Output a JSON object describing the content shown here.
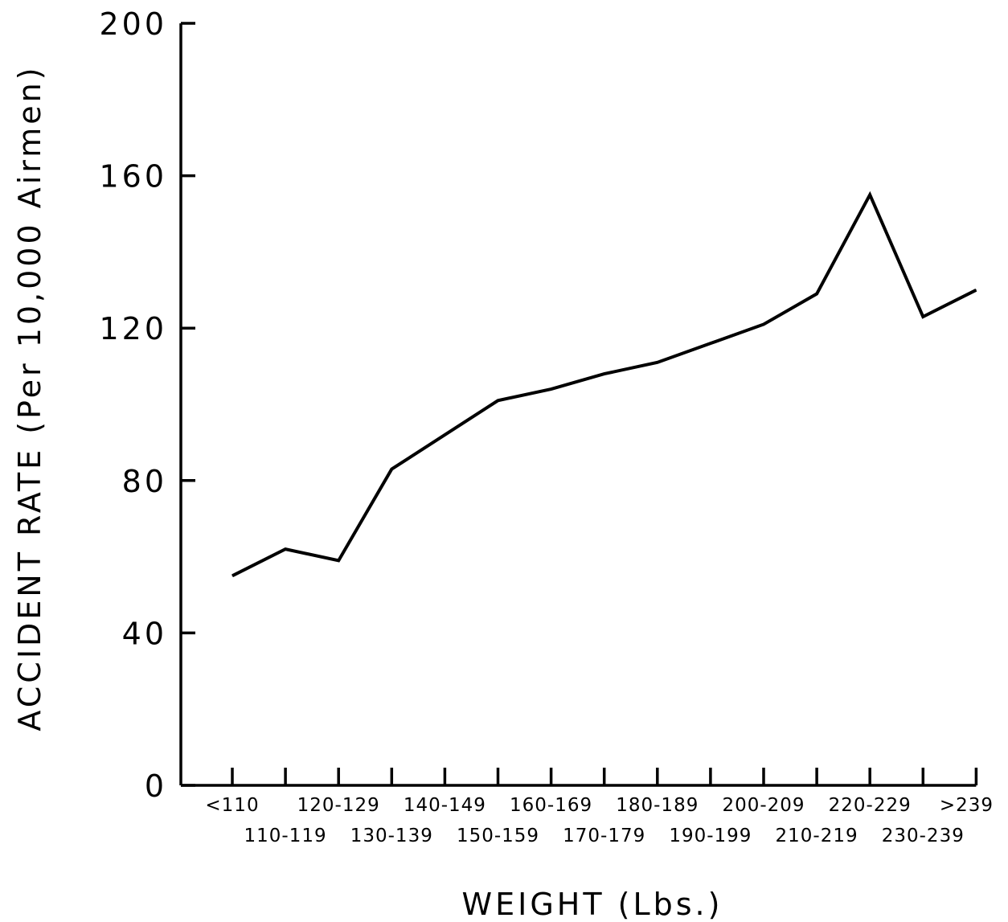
{
  "chart_data": {
    "type": "line",
    "title": "",
    "xlabel": "WEIGHT (Lbs.)",
    "ylabel": "ACCIDENT RATE (Per 10,000 Airmen)",
    "categories": [
      "<110",
      "110-119",
      "120-129",
      "130-139",
      "140-149",
      "150-159",
      "160-169",
      "170-179",
      "180-189",
      "190-199",
      "200-209",
      "210-219",
      "220-229",
      "230-239",
      ">239"
    ],
    "series": [
      {
        "values": [
          55,
          62,
          59,
          83,
          92,
          101,
          104,
          108,
          111,
          116,
          121,
          129,
          155,
          123,
          130
        ]
      }
    ],
    "ylim": [
      0,
      200
    ],
    "yticks": [
      0,
      40,
      80,
      120,
      160,
      200
    ],
    "grid": false,
    "legend": "none",
    "line_color": "#000000"
  }
}
